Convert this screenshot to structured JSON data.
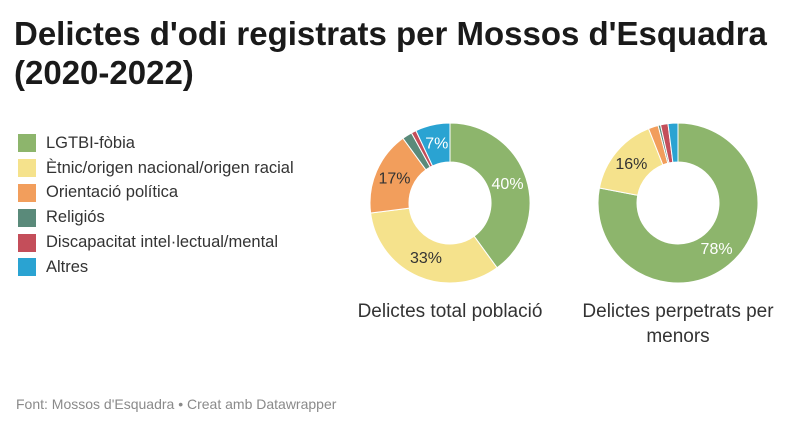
{
  "title": "Delictes d'odi registrats per Mossos d'Esquadra (2020-2022)",
  "footer": {
    "source": "Font: Mossos d'Esquadra",
    "separator": "•",
    "credit": "Creat amb Datawrapper"
  },
  "chart_data": [
    {
      "type": "pie",
      "caption": "Delictes total població",
      "categories": [
        "LGTBI-fòbia",
        "Ètnic/origen nacional/origen racial",
        "Orientació política",
        "Religiós",
        "Discapacitat intel·lectual/mental",
        "Altres"
      ],
      "values": [
        40,
        33,
        17,
        2,
        1,
        7
      ],
      "value_labels": [
        "40%",
        "33%",
        "17%",
        "",
        "",
        "7%"
      ],
      "label_colors": [
        "#ffffff",
        "#333333",
        "#333333",
        "",
        "",
        "#ffffff"
      ]
    },
    {
      "type": "pie",
      "caption": "Delictes perpetrats per menors",
      "categories": [
        "LGTBI-fòbia",
        "Ètnic/origen nacional/origen racial",
        "Orientació política",
        "Religiós",
        "Discapacitat intel·lectual/mental",
        "Altres"
      ],
      "values": [
        78,
        16,
        2,
        0.5,
        1.5,
        2
      ],
      "value_labels": [
        "78%",
        "16%",
        "",
        "",
        "",
        ""
      ],
      "label_colors": [
        "#ffffff",
        "#333333",
        "",
        "",
        "",
        ""
      ]
    }
  ],
  "legend": [
    {
      "label": "LGTBI-fòbia",
      "color": "#8db56c"
    },
    {
      "label": "Ètnic/origen nacional/origen racial",
      "color": "#f5e28c"
    },
    {
      "label": "Orientació política",
      "color": "#f29e5c"
    },
    {
      "label": "Religiós",
      "color": "#5a8a7a"
    },
    {
      "label": "Discapacitat intel·lectual/mental",
      "color": "#c44e5a"
    },
    {
      "label": "Altres",
      "color": "#2aa3d2"
    }
  ]
}
